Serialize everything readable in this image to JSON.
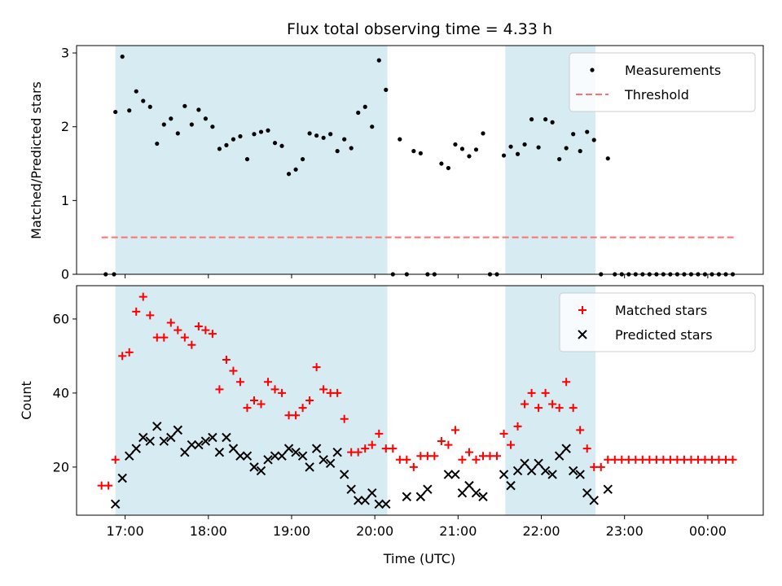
{
  "chart_data": [
    {
      "type": "scatter",
      "title": "Flux total observing time = 4.33 h",
      "ylabel": "Matched/Predicted stars",
      "xlim": [
        "16:25",
        "00:40"
      ],
      "ylim": [
        0,
        3.1
      ],
      "yticks": [
        0,
        1,
        2,
        3
      ],
      "xticks": [
        "17:00",
        "18:00",
        "19:00",
        "20:00",
        "21:00",
        "22:00",
        "23:00",
        "00:00"
      ],
      "shaded_intervals": [
        [
          "16:53",
          "20:09"
        ],
        [
          "21:34",
          "22:39"
        ]
      ],
      "shade_color": "#add8e6",
      "legend_position": "top-right",
      "series": [
        {
          "name": "Measurements",
          "marker": "dot",
          "color": "#000000",
          "points": [
            [
              "16:46",
              0
            ],
            [
              "16:52",
              0
            ],
            [
              "16:53",
              2.2
            ],
            [
              "16:58",
              2.95
            ],
            [
              "17:03",
              2.22
            ],
            [
              "17:08",
              2.48
            ],
            [
              "17:13",
              2.35
            ],
            [
              "17:18",
              2.27
            ],
            [
              "17:23",
              1.77
            ],
            [
              "17:28",
              2.03
            ],
            [
              "17:33",
              2.11
            ],
            [
              "17:38",
              1.91
            ],
            [
              "17:43",
              2.28
            ],
            [
              "17:48",
              2.03
            ],
            [
              "17:53",
              2.23
            ],
            [
              "17:58",
              2.11
            ],
            [
              "18:03",
              2.0
            ],
            [
              "18:08",
              1.7
            ],
            [
              "18:13",
              1.75
            ],
            [
              "18:18",
              1.83
            ],
            [
              "18:23",
              1.87
            ],
            [
              "18:28",
              1.56
            ],
            [
              "18:33",
              1.9
            ],
            [
              "18:38",
              1.93
            ],
            [
              "18:43",
              1.95
            ],
            [
              "18:48",
              1.78
            ],
            [
              "18:53",
              1.74
            ],
            [
              "18:58",
              1.36
            ],
            [
              "19:03",
              1.42
            ],
            [
              "19:08",
              1.56
            ],
            [
              "19:13",
              1.91
            ],
            [
              "19:18",
              1.88
            ],
            [
              "19:23",
              1.85
            ],
            [
              "19:28",
              1.9
            ],
            [
              "19:33",
              1.67
            ],
            [
              "19:38",
              1.83
            ],
            [
              "19:43",
              1.71
            ],
            [
              "19:48",
              2.19
            ],
            [
              "19:53",
              2.27
            ],
            [
              "19:58",
              2.0
            ],
            [
              "20:03",
              2.9
            ],
            [
              "20:08",
              2.5
            ],
            [
              "20:13",
              0
            ],
            [
              "20:18",
              1.83
            ],
            [
              "20:23",
              0
            ],
            [
              "20:28",
              1.67
            ],
            [
              "20:33",
              1.64
            ],
            [
              "20:38",
              0
            ],
            [
              "20:43",
              0
            ],
            [
              "20:48",
              1.5
            ],
            [
              "20:53",
              1.44
            ],
            [
              "20:58",
              1.76
            ],
            [
              "21:03",
              1.7
            ],
            [
              "21:08",
              1.6
            ],
            [
              "21:13",
              1.69
            ],
            [
              "21:18",
              1.91
            ],
            [
              "21:23",
              0
            ],
            [
              "21:28",
              0
            ],
            [
              "21:33",
              1.61
            ],
            [
              "21:38",
              1.73
            ],
            [
              "21:43",
              1.63
            ],
            [
              "21:48",
              1.76
            ],
            [
              "21:53",
              2.1
            ],
            [
              "21:58",
              1.72
            ],
            [
              "22:03",
              2.1
            ],
            [
              "22:08",
              2.06
            ],
            [
              "22:13",
              1.56
            ],
            [
              "22:18",
              1.71
            ],
            [
              "22:23",
              1.9
            ],
            [
              "22:28",
              1.67
            ],
            [
              "22:33",
              1.93
            ],
            [
              "22:38",
              1.82
            ],
            [
              "22:43",
              0
            ],
            [
              "22:48",
              1.57
            ],
            [
              "22:53",
              0
            ],
            [
              "22:58",
              0
            ],
            [
              "23:03",
              0
            ],
            [
              "23:08",
              0
            ],
            [
              "23:13",
              0
            ],
            [
              "23:18",
              0
            ],
            [
              "23:23",
              0
            ],
            [
              "23:28",
              0
            ],
            [
              "23:33",
              0
            ],
            [
              "23:38",
              0
            ],
            [
              "23:43",
              0
            ],
            [
              "23:48",
              0
            ],
            [
              "23:53",
              0
            ],
            [
              "23:58",
              0
            ],
            [
              "00:03",
              0
            ],
            [
              "00:08",
              0
            ],
            [
              "00:13",
              0
            ],
            [
              "00:18",
              0
            ]
          ]
        },
        {
          "name": "Threshold",
          "type": "line",
          "style": "dashed",
          "color": "#ff7070",
          "points": [
            [
              "16:43",
              0.5
            ],
            [
              "00:20",
              0.5
            ]
          ]
        }
      ]
    },
    {
      "type": "scatter",
      "xlabel": "Time (UTC)",
      "ylabel": "Count",
      "xlim": [
        "16:25",
        "00:40"
      ],
      "ylim": [
        7,
        69
      ],
      "yticks": [
        20,
        40,
        60
      ],
      "xticks": [
        "17:00",
        "18:00",
        "19:00",
        "20:00",
        "21:00",
        "22:00",
        "23:00",
        "00:00"
      ],
      "shaded_intervals": [
        [
          "16:53",
          "20:09"
        ],
        [
          "21:34",
          "22:39"
        ]
      ],
      "shade_color": "#add8e6",
      "legend_position": "top-right",
      "series": [
        {
          "name": "Matched stars",
          "marker": "plus",
          "color": "#ff0000",
          "points": [
            [
              "16:43",
              15
            ],
            [
              "16:48",
              15
            ],
            [
              "16:53",
              22
            ],
            [
              "16:58",
              50
            ],
            [
              "17:03",
              51
            ],
            [
              "17:08",
              62
            ],
            [
              "17:13",
              66
            ],
            [
              "17:18",
              61
            ],
            [
              "17:23",
              55
            ],
            [
              "17:28",
              55
            ],
            [
              "17:33",
              59
            ],
            [
              "17:38",
              57
            ],
            [
              "17:43",
              55
            ],
            [
              "17:48",
              53
            ],
            [
              "17:53",
              58
            ],
            [
              "17:58",
              57
            ],
            [
              "18:03",
              56
            ],
            [
              "18:08",
              41
            ],
            [
              "18:13",
              49
            ],
            [
              "18:18",
              46
            ],
            [
              "18:23",
              43
            ],
            [
              "18:28",
              36
            ],
            [
              "18:33",
              38
            ],
            [
              "18:38",
              37
            ],
            [
              "18:43",
              43
            ],
            [
              "18:48",
              41
            ],
            [
              "18:53",
              40
            ],
            [
              "18:58",
              34
            ],
            [
              "19:03",
              34
            ],
            [
              "19:08",
              36
            ],
            [
              "19:13",
              38
            ],
            [
              "19:18",
              47
            ],
            [
              "19:23",
              41
            ],
            [
              "19:28",
              40
            ],
            [
              "19:33",
              40
            ],
            [
              "19:38",
              33
            ],
            [
              "19:43",
              24
            ],
            [
              "19:48",
              24
            ],
            [
              "19:53",
              25
            ],
            [
              "19:58",
              26
            ],
            [
              "20:03",
              29
            ],
            [
              "20:08",
              25
            ],
            [
              "20:13",
              25
            ],
            [
              "20:18",
              22
            ],
            [
              "20:23",
              22
            ],
            [
              "20:28",
              20
            ],
            [
              "20:33",
              23
            ],
            [
              "20:38",
              23
            ],
            [
              "20:43",
              23
            ],
            [
              "20:48",
              27
            ],
            [
              "20:53",
              26
            ],
            [
              "20:58",
              30
            ],
            [
              "21:03",
              22
            ],
            [
              "21:08",
              24
            ],
            [
              "21:13",
              22
            ],
            [
              "21:18",
              23
            ],
            [
              "21:23",
              23
            ],
            [
              "21:28",
              23
            ],
            [
              "21:33",
              29
            ],
            [
              "21:38",
              26
            ],
            [
              "21:43",
              31
            ],
            [
              "21:48",
              37
            ],
            [
              "21:53",
              40
            ],
            [
              "21:58",
              36
            ],
            [
              "22:03",
              40
            ],
            [
              "22:08",
              37
            ],
            [
              "22:13",
              36
            ],
            [
              "22:18",
              43
            ],
            [
              "22:23",
              36
            ],
            [
              "22:28",
              30
            ],
            [
              "22:33",
              25
            ],
            [
              "22:38",
              20
            ],
            [
              "22:43",
              20
            ],
            [
              "22:48",
              22
            ],
            [
              "22:53",
              22
            ],
            [
              "22:58",
              22
            ],
            [
              "23:03",
              22
            ],
            [
              "23:08",
              22
            ],
            [
              "23:13",
              22
            ],
            [
              "23:18",
              22
            ],
            [
              "23:23",
              22
            ],
            [
              "23:28",
              22
            ],
            [
              "23:33",
              22
            ],
            [
              "23:38",
              22
            ],
            [
              "23:43",
              22
            ],
            [
              "23:48",
              22
            ],
            [
              "23:53",
              22
            ],
            [
              "23:58",
              22
            ],
            [
              "00:03",
              22
            ],
            [
              "00:08",
              22
            ],
            [
              "00:13",
              22
            ],
            [
              "00:18",
              22
            ]
          ]
        },
        {
          "name": "Predicted stars",
          "marker": "x",
          "color": "#000000",
          "points": [
            [
              "16:53",
              10
            ],
            [
              "16:58",
              17
            ],
            [
              "17:03",
              23
            ],
            [
              "17:08",
              25
            ],
            [
              "17:13",
              28
            ],
            [
              "17:18",
              27
            ],
            [
              "17:23",
              31
            ],
            [
              "17:28",
              27
            ],
            [
              "17:33",
              28
            ],
            [
              "17:38",
              30
            ],
            [
              "17:43",
              24
            ],
            [
              "17:48",
              26
            ],
            [
              "17:53",
              26
            ],
            [
              "17:58",
              27
            ],
            [
              "18:03",
              28
            ],
            [
              "18:08",
              24
            ],
            [
              "18:13",
              28
            ],
            [
              "18:18",
              25
            ],
            [
              "18:23",
              23
            ],
            [
              "18:28",
              23
            ],
            [
              "18:33",
              20
            ],
            [
              "18:38",
              19
            ],
            [
              "18:43",
              22
            ],
            [
              "18:48",
              23
            ],
            [
              "18:53",
              23
            ],
            [
              "18:58",
              25
            ],
            [
              "19:03",
              24
            ],
            [
              "19:08",
              23
            ],
            [
              "19:13",
              20
            ],
            [
              "19:18",
              25
            ],
            [
              "19:23",
              22
            ],
            [
              "19:28",
              21
            ],
            [
              "19:33",
              24
            ],
            [
              "19:38",
              18
            ],
            [
              "19:43",
              14
            ],
            [
              "19:48",
              11
            ],
            [
              "19:53",
              11
            ],
            [
              "19:58",
              13
            ],
            [
              "20:03",
              10
            ],
            [
              "20:08",
              10
            ],
            [
              "20:23",
              12
            ],
            [
              "20:33",
              12
            ],
            [
              "20:38",
              14
            ],
            [
              "20:53",
              18
            ],
            [
              "20:58",
              18
            ],
            [
              "21:03",
              13
            ],
            [
              "21:08",
              15
            ],
            [
              "21:13",
              13
            ],
            [
              "21:18",
              12
            ],
            [
              "21:33",
              18
            ],
            [
              "21:38",
              15
            ],
            [
              "21:43",
              19
            ],
            [
              "21:48",
              21
            ],
            [
              "21:53",
              19
            ],
            [
              "21:58",
              21
            ],
            [
              "22:03",
              19
            ],
            [
              "22:08",
              18
            ],
            [
              "22:13",
              23
            ],
            [
              "22:18",
              25
            ],
            [
              "22:23",
              19
            ],
            [
              "22:28",
              18
            ],
            [
              "22:33",
              13
            ],
            [
              "22:38",
              11
            ],
            [
              "22:48",
              14
            ]
          ]
        }
      ]
    }
  ]
}
